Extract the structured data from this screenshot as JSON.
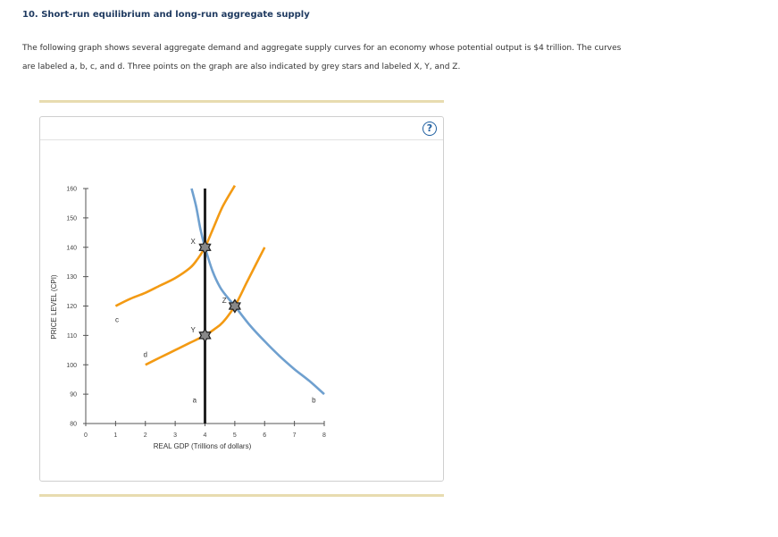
{
  "question": {
    "heading": "10. Short-run equilibrium and long-run aggregate supply",
    "prompt_line1": "The following graph shows several aggregate demand and aggregate supply curves for an economy whose potential output is $4 trillion. The curves",
    "prompt_line2": "are labeled a, b, c, and d. Three points on the graph are also indicated by grey stars and labeled X, Y, and Z."
  },
  "help_button": {
    "label": "?"
  },
  "colors": {
    "demand": "#6fa0cf",
    "supply": "#f39a13",
    "vertical": "#222222",
    "star": "#888888",
    "axis": "#555555"
  },
  "chart_data": {
    "type": "line",
    "xlabel": "REAL GDP (Trillions of dollars)",
    "ylabel": "PRICE LEVEL (CPI)",
    "xlim": [
      0,
      8
    ],
    "ylim": [
      80,
      160
    ],
    "xticks": [
      0,
      1,
      2,
      3,
      4,
      5,
      6,
      7,
      8
    ],
    "yticks": [
      80,
      90,
      100,
      110,
      120,
      130,
      140,
      150,
      160
    ],
    "series": [
      {
        "name": "a",
        "role": "vertical",
        "label_at": [
          3.65,
          88
        ],
        "points": [
          [
            4,
            80
          ],
          [
            4,
            160
          ]
        ]
      },
      {
        "name": "b",
        "role": "demand",
        "label_at": [
          7.65,
          88
        ],
        "points": [
          [
            3.55,
            160
          ],
          [
            3.7,
            154
          ],
          [
            3.85,
            146
          ],
          [
            4,
            140
          ],
          [
            4.25,
            132
          ],
          [
            4.5,
            126.5
          ],
          [
            4.75,
            123
          ],
          [
            5,
            120
          ],
          [
            5.5,
            113.5
          ],
          [
            6,
            108
          ],
          [
            6.5,
            103
          ],
          [
            7,
            98.5
          ],
          [
            7.5,
            94.5
          ],
          [
            8,
            90
          ]
        ]
      },
      {
        "name": "c",
        "role": "supply",
        "label_at": [
          1.05,
          115.5
        ],
        "points": [
          [
            1,
            120
          ],
          [
            1.5,
            122.5
          ],
          [
            2,
            124.5
          ],
          [
            2.5,
            127
          ],
          [
            3,
            129.5
          ],
          [
            3.5,
            133
          ],
          [
            3.75,
            136
          ],
          [
            4,
            140
          ],
          [
            4.3,
            147
          ],
          [
            4.6,
            154
          ],
          [
            5,
            161
          ]
        ]
      },
      {
        "name": "d",
        "role": "supply",
        "label_at": [
          2,
          103.5
        ],
        "points": [
          [
            2,
            100
          ],
          [
            2.5,
            102.5
          ],
          [
            3,
            105
          ],
          [
            3.5,
            107.5
          ],
          [
            4,
            110
          ],
          [
            4.3,
            112
          ],
          [
            4.6,
            114.5
          ],
          [
            5,
            120
          ],
          [
            5.4,
            128
          ],
          [
            5.7,
            134
          ],
          [
            6,
            140
          ]
        ]
      }
    ],
    "points": [
      {
        "label": "X",
        "x": 4,
        "y": 140,
        "label_at": [
          3.6,
          142
        ]
      },
      {
        "label": "Y",
        "x": 4,
        "y": 110,
        "label_at": [
          3.6,
          112
        ]
      },
      {
        "label": "Z",
        "x": 5,
        "y": 120,
        "label_at": [
          4.65,
          122
        ]
      }
    ]
  }
}
